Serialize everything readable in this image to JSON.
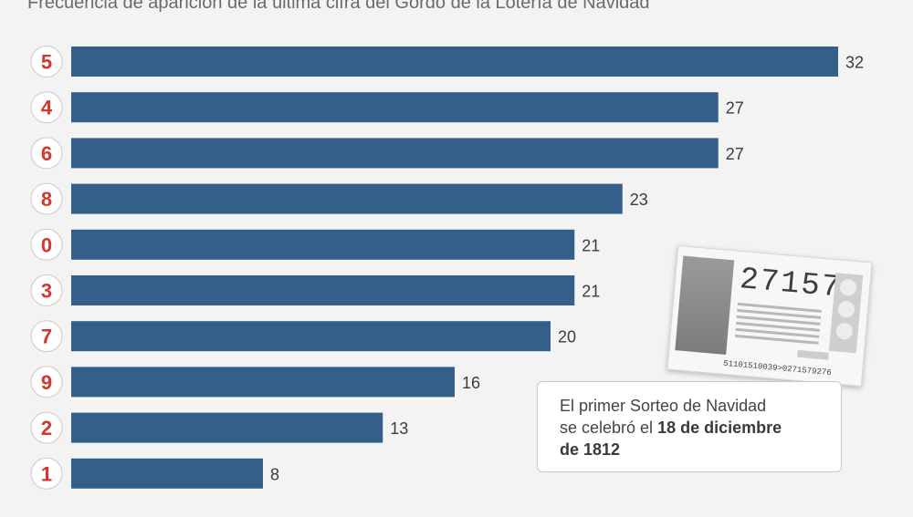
{
  "header": {
    "subtitle": "Frecuencia de aparición de la última cifra del Gordo de la Lotería de Navidad",
    "subtitle_mark": "*"
  },
  "chart_data": {
    "type": "bar",
    "orientation": "horizontal",
    "title": "Frecuencia de aparición de la última cifra del Gordo de la Lotería de Navidad",
    "categories": [
      "5",
      "4",
      "6",
      "8",
      "0",
      "3",
      "7",
      "9",
      "2",
      "1"
    ],
    "values": [
      32,
      27,
      27,
      23,
      21,
      21,
      20,
      16,
      13,
      8
    ],
    "xlim": [
      0,
      32
    ],
    "bar_color": "#345f89",
    "label_color": "#d1372b",
    "grid": false
  },
  "note": {
    "line1": "El primer Sorteo de Navidad",
    "line2_prefix": "se celebró el ",
    "line2_bold": "18 de diciembre",
    "line3_bold": "de 1812"
  },
  "ticket": {
    "number": "27157",
    "code": "51101510039>0271579276"
  }
}
